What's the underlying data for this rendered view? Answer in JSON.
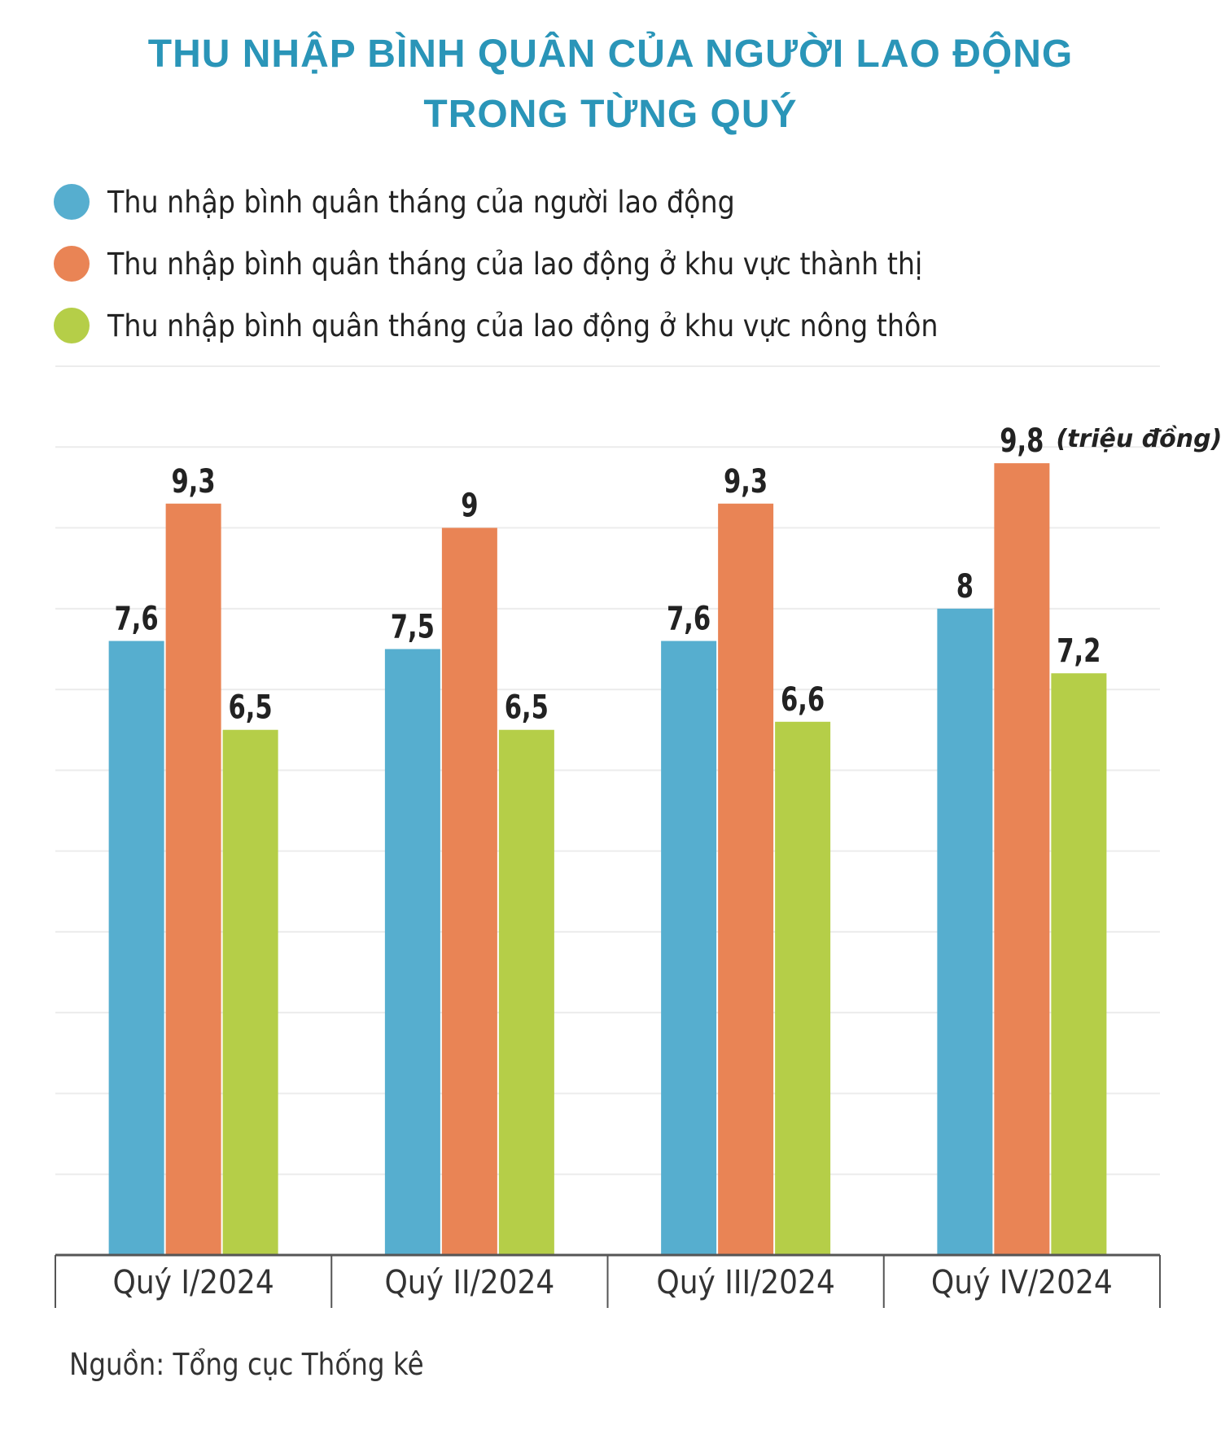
{
  "title": {
    "line1": "THU NHẬP BÌNH QUÂN CỦA NGƯỜI LAO ĐỘNG",
    "line2": "TRONG TỪNG QUÝ"
  },
  "legend": [
    {
      "label": "Thu nhập bình quân tháng của người lao động",
      "color": "#56aecf"
    },
    {
      "label": "Thu nhập bình quân tháng của lao động ở khu vực thành thị",
      "color": "#e98455"
    },
    {
      "label": "Thu nhập bình quân tháng của lao động ở khu vực nông thôn",
      "color": "#b5ce48"
    }
  ],
  "source": "Nguồn: Tổng cục Thống kê",
  "chart_data": {
    "type": "bar",
    "title": "THU NHẬP BÌNH QUÂN CỦA NGƯỜI LAO ĐỘNG TRONG TỪNG QUÝ",
    "unit_label": "(triệu đồng)",
    "categories": [
      "Quý I/2024",
      "Quý II/2024",
      "Quý III/2024",
      "Quý IV/2024"
    ],
    "series": [
      {
        "name": "Thu nhập bình quân tháng của người lao động",
        "color": "#56aecf",
        "values": [
          7.6,
          7.5,
          7.6,
          8
        ],
        "labels": [
          "7,6",
          "7,5",
          "7,6",
          "8"
        ]
      },
      {
        "name": "Thu nhập bình quân tháng của lao động ở khu vực thành thị",
        "color": "#e98455",
        "values": [
          9.3,
          9,
          9.3,
          9.8
        ],
        "labels": [
          "9,3",
          "9",
          "9,3",
          "9,8"
        ]
      },
      {
        "name": "Thu nhập bình quân tháng của lao động ở khu vực nông thôn",
        "color": "#b5ce48",
        "values": [
          6.5,
          6.5,
          6.6,
          7.2
        ],
        "labels": [
          "6,5",
          "6,5",
          "6,6",
          "7,2"
        ]
      }
    ],
    "ylim": [
      0,
      11
    ],
    "grid": true,
    "xlabel": "",
    "ylabel": ""
  }
}
